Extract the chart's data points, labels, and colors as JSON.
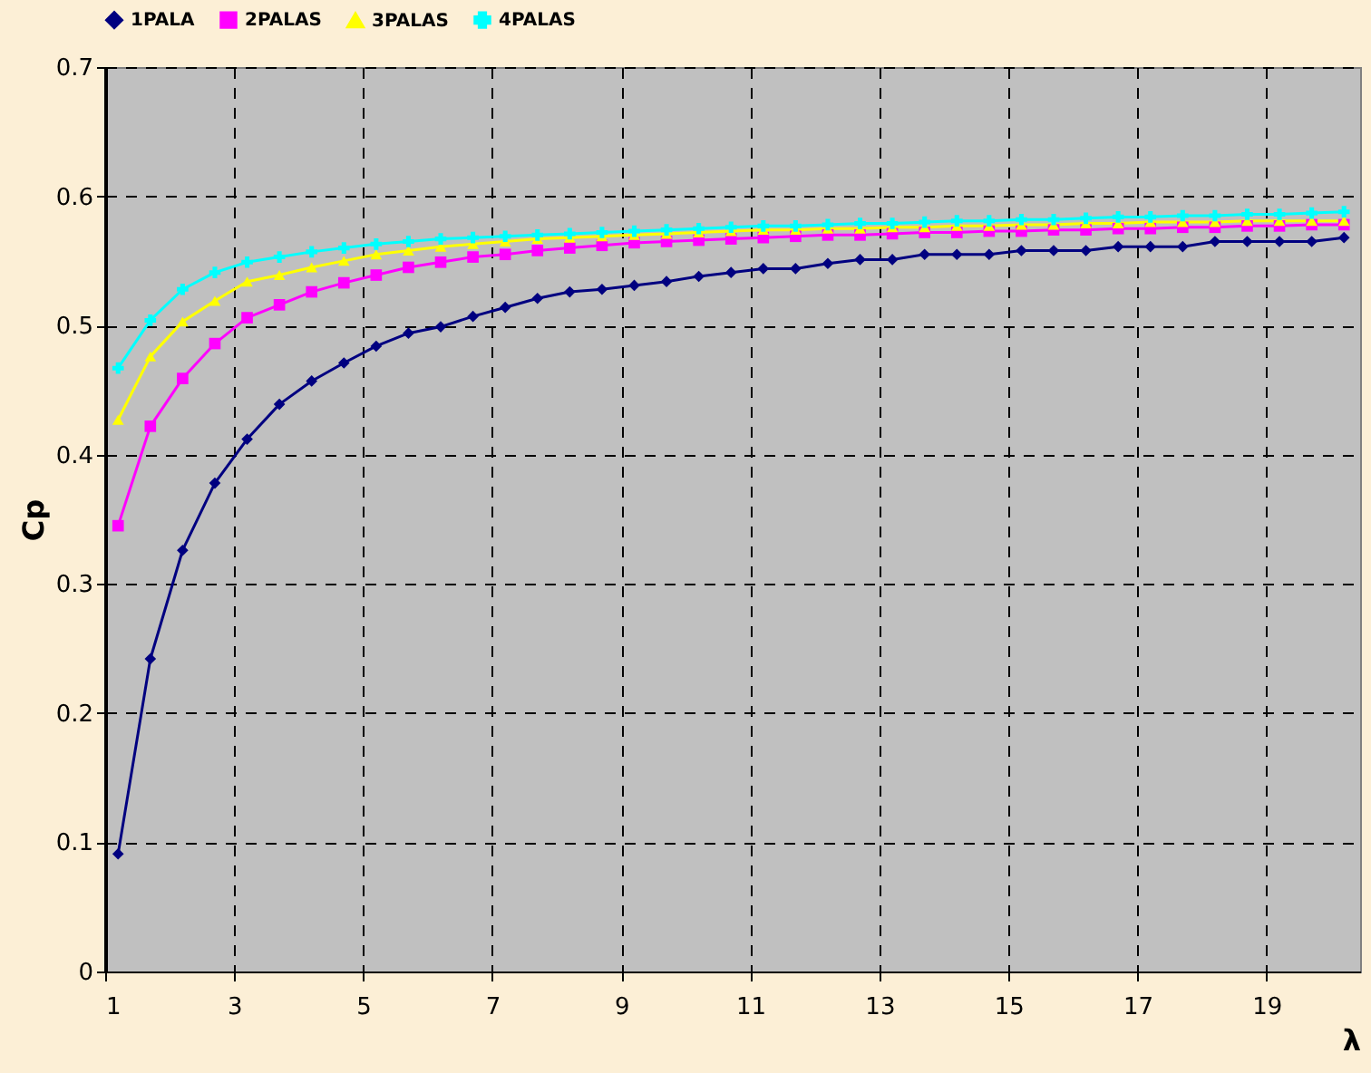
{
  "chart_data": {
    "type": "line",
    "xlabel": "λ",
    "ylabel": "Cp",
    "xlim": [
      1,
      20.45
    ],
    "xticks": [
      1,
      3,
      5,
      7,
      9,
      11,
      13,
      15,
      17,
      19
    ],
    "ylim": [
      0,
      0.7
    ],
    "yticks": [
      0,
      0.1,
      0.2,
      0.3,
      0.4,
      0.5,
      0.6,
      0.7
    ],
    "grid": true,
    "line_style": "solid",
    "legend": "top",
    "x": [
      1.2,
      1.7,
      2.2,
      2.7,
      3.2,
      3.7,
      4.2,
      4.7,
      5.2,
      5.7,
      6.2,
      6.7,
      7.2,
      7.7,
      8.2,
      8.7,
      9.2,
      9.7,
      10.2,
      10.7,
      11.2,
      11.7,
      12.2,
      12.7,
      13.2,
      13.7,
      14.2,
      14.7,
      15.2,
      15.7,
      16.2,
      16.7,
      17.2,
      17.7,
      18.2,
      18.7,
      19.2,
      19.7,
      20.2
    ],
    "series": [
      {
        "name": "1PALA",
        "color": "#000080",
        "marker": "diamond",
        "values": [
          0.091,
          0.242,
          0.326,
          0.378,
          0.412,
          0.439,
          0.457,
          0.471,
          0.484,
          0.494,
          0.499,
          0.507,
          0.514,
          0.521,
          0.526,
          0.528,
          0.531,
          0.534,
          0.538,
          0.541,
          0.544,
          0.544,
          0.548,
          0.551,
          0.551,
          0.555,
          0.555,
          0.555,
          0.558,
          0.558,
          0.558,
          0.561,
          0.561,
          0.561,
          0.565,
          0.565,
          0.565,
          0.565,
          0.568
        ]
      },
      {
        "name": "2PALAS",
        "color": "#ff00ff",
        "marker": "square",
        "values": [
          0.345,
          0.422,
          0.459,
          0.486,
          0.506,
          0.516,
          0.526,
          0.533,
          0.539,
          0.545,
          0.549,
          0.553,
          0.555,
          0.558,
          0.56,
          0.562,
          0.564,
          0.565,
          0.566,
          0.567,
          0.568,
          0.569,
          0.57,
          0.57,
          0.571,
          0.572,
          0.572,
          0.573,
          0.573,
          0.574,
          0.574,
          0.575,
          0.575,
          0.576,
          0.576,
          0.577,
          0.577,
          0.578,
          0.578
        ]
      },
      {
        "name": "3PALAS",
        "color": "#ffff00",
        "marker": "triangle",
        "values": [
          0.427,
          0.476,
          0.503,
          0.519,
          0.534,
          0.539,
          0.545,
          0.55,
          0.555,
          0.558,
          0.561,
          0.563,
          0.565,
          0.567,
          0.568,
          0.569,
          0.57,
          0.571,
          0.572,
          0.573,
          0.574,
          0.574,
          0.575,
          0.575,
          0.576,
          0.576,
          0.577,
          0.577,
          0.578,
          0.578,
          0.579,
          0.579,
          0.58,
          0.58,
          0.58,
          0.581,
          0.581,
          0.581,
          0.581
        ]
      },
      {
        "name": "4PALAS",
        "color": "#00ffff",
        "marker": "cross",
        "values": [
          0.467,
          0.504,
          0.528,
          0.541,
          0.549,
          0.553,
          0.557,
          0.56,
          0.563,
          0.565,
          0.567,
          0.568,
          0.569,
          0.57,
          0.571,
          0.572,
          0.573,
          0.574,
          0.575,
          0.576,
          0.577,
          0.577,
          0.578,
          0.579,
          0.579,
          0.58,
          0.581,
          0.581,
          0.582,
          0.582,
          0.583,
          0.584,
          0.584,
          0.585,
          0.585,
          0.586,
          0.586,
          0.587,
          0.588
        ]
      }
    ]
  }
}
